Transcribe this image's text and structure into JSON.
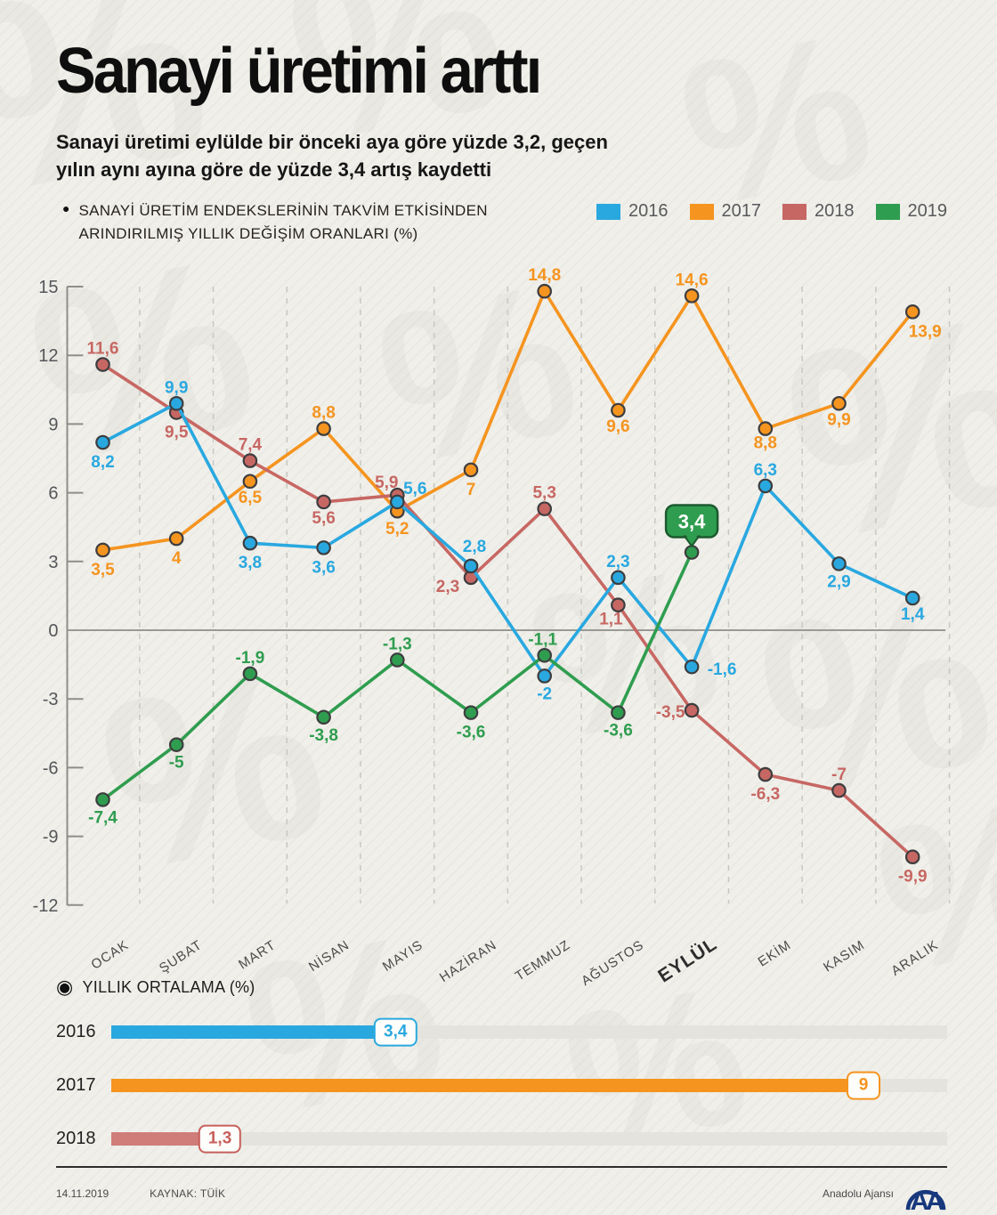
{
  "header": {
    "title": "Sanayi üretimi arttı",
    "subtitle_line1": "Sanayi üretimi eylülde bir önceki aya göre yüzde 3,2, geçen",
    "subtitle_line2": "yılın aynı ayına göre de yüzde 3,4 artış kaydetti"
  },
  "chart_section": {
    "bullet": "●",
    "label": "SANAYİ ÜRETİM ENDEKSLERİNİN TAKVİM ETKİSİNDEN ARINDIRILMIŞ YILLIK DEĞİŞİM ORANLARI (%)"
  },
  "legend": [
    {
      "label": "2016",
      "color": "#29a8e0"
    },
    {
      "label": "2017",
      "color": "#f5941f"
    },
    {
      "label": "2018",
      "color": "#c76763"
    },
    {
      "label": "2019",
      "color": "#2f9d4f"
    }
  ],
  "chart_data": {
    "type": "line",
    "categories": [
      "OCAK",
      "ŞUBAT",
      "MART",
      "NİSAN",
      "MAYIS",
      "HAZİRAN",
      "TEMMUZ",
      "AĞUSTOS",
      "EYLÜL",
      "EKİM",
      "KASIM",
      "ARALIK"
    ],
    "highlighted_category": "EYLÜL",
    "ylim": [
      -12,
      15
    ],
    "yticks": [
      15,
      12,
      9,
      6,
      3,
      0,
      -3,
      -6,
      -9,
      -12
    ],
    "grid": "vertical-dashed-between-months, solid zero line",
    "series": [
      {
        "name": "2016",
        "color": "#29a8e0",
        "values": [
          8.2,
          9.9,
          3.8,
          3.6,
          5.6,
          2.8,
          -2,
          2.3,
          -1.6,
          6.3,
          2.9,
          1.4
        ],
        "labels": [
          "8,2",
          "9,9",
          "3,8",
          "3,6",
          "5,6",
          "2,8",
          "-2",
          "2,3",
          "-1,6",
          "6,3",
          "2,9",
          "1,4"
        ]
      },
      {
        "name": "2017",
        "color": "#f5941f",
        "values": [
          3.5,
          4,
          6.5,
          8.8,
          5.2,
          7,
          14.8,
          9.6,
          14.6,
          8.8,
          9.9,
          13.9
        ],
        "labels": [
          "3,5",
          "4",
          "6,5",
          "8,8",
          "5,2",
          "7",
          "14,8",
          "9,6",
          "14,6",
          "8,8",
          "9,9",
          "13,9"
        ]
      },
      {
        "name": "2018",
        "color": "#c76763",
        "values": [
          11.6,
          9.5,
          7.4,
          5.6,
          5.9,
          2.3,
          5.3,
          1.1,
          -3.5,
          -6.3,
          -7,
          -9.9
        ],
        "labels": [
          "11,6",
          "9,5",
          "7,4",
          "5,6",
          "5,9",
          "2,3",
          "5,3",
          "1,1",
          "-3,5",
          "-6,3",
          "-7",
          "-9,9"
        ]
      },
      {
        "name": "2019",
        "color": "#2f9d4f",
        "values": [
          -7.4,
          -5,
          -1.9,
          -3.8,
          -1.3,
          -3.6,
          -1.1,
          -3.6,
          3.4
        ],
        "labels": [
          "-7,4",
          "-5",
          "-1,9",
          "-3,8",
          "-1,3",
          "-3,6",
          "-1,1",
          "-3,6",
          "3,4"
        ]
      }
    ],
    "callout": {
      "series": "2019",
      "category": "EYLÜL",
      "label": "3,4",
      "fill": "#2f9d4f",
      "stroke": "#1c5a2e"
    }
  },
  "bars_section": {
    "bullet": "◉",
    "label": "YILLIK ORTALAMA (%)",
    "scale_max": 10,
    "rows": [
      {
        "year": "2016",
        "value": 3.4,
        "label": "3,4",
        "bar_color": "#29a8e0",
        "accent": "#29a8e0"
      },
      {
        "year": "2017",
        "value": 9,
        "label": "9",
        "bar_color": "#f5941f",
        "accent": "#f5941f"
      },
      {
        "year": "2018",
        "value": 1.3,
        "label": "1,3",
        "bar_color": "#d07d79",
        "accent": "#c75f5b"
      }
    ]
  },
  "footer": {
    "date": "14.11.2019",
    "source": "KAYNAK: TÜİK",
    "agency": "Anadolu Ajansı",
    "logo_text": "AA",
    "logo_color": "#17387d"
  },
  "decor": {
    "watermark_symbol": "%"
  }
}
